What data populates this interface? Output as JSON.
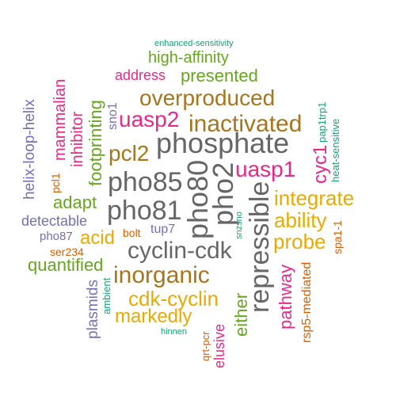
{
  "colors": {
    "teal": "#1b9e77",
    "orange": "#d95f02",
    "purple": "#7570b3",
    "magenta": "#e7298a",
    "green": "#66a61e",
    "gold": "#e6ab02",
    "brown": "#a6761d",
    "gray": "#666666"
  },
  "words": [
    {
      "text": "enhanced-sensitivity",
      "color": "teal"
    },
    {
      "text": "high-affinity",
      "color": "green"
    },
    {
      "text": "address",
      "color": "magenta"
    },
    {
      "text": "presented",
      "color": "green"
    },
    {
      "text": "overproduced",
      "color": "brown"
    },
    {
      "text": "uasp2",
      "color": "magenta"
    },
    {
      "text": "inactivated",
      "color": "brown"
    },
    {
      "text": "phosphate",
      "color": "gray"
    },
    {
      "text": "pcl2",
      "color": "brown"
    },
    {
      "text": "pho85",
      "color": "gray"
    },
    {
      "text": "pho80",
      "color": "gray"
    },
    {
      "text": "pho2",
      "color": "gray"
    },
    {
      "text": "uasp1",
      "color": "magenta"
    },
    {
      "text": "integrate",
      "color": "gold"
    },
    {
      "text": "pho81",
      "color": "gray"
    },
    {
      "text": "adapt",
      "color": "green"
    },
    {
      "text": "ability",
      "color": "gold"
    },
    {
      "text": "detectable",
      "color": "purple"
    },
    {
      "text": "tup7",
      "color": "purple"
    },
    {
      "text": "bolt",
      "color": "orange"
    },
    {
      "text": "pho87",
      "color": "purple"
    },
    {
      "text": "acid",
      "color": "gold"
    },
    {
      "text": "probe",
      "color": "gold"
    },
    {
      "text": "cyclin-cdk",
      "color": "gray"
    },
    {
      "text": "ser234",
      "color": "orange"
    },
    {
      "text": "quantified",
      "color": "green"
    },
    {
      "text": "inorganic",
      "color": "brown"
    },
    {
      "text": "cdk-cyclin",
      "color": "gold"
    },
    {
      "text": "markedly",
      "color": "gold"
    },
    {
      "text": "hinnen",
      "color": "teal"
    },
    {
      "text": "helix-loop-helix",
      "color": "purple"
    },
    {
      "text": "mammalian",
      "color": "magenta"
    },
    {
      "text": "inhibitor",
      "color": "magenta"
    },
    {
      "text": "footprinting",
      "color": "green"
    },
    {
      "text": "sno1",
      "color": "purple"
    },
    {
      "text": "pcl1",
      "color": "orange"
    },
    {
      "text": "pap1trp1",
      "color": "teal"
    },
    {
      "text": "heat-sensitive",
      "color": "teal"
    },
    {
      "text": "cyc1",
      "color": "magenta"
    },
    {
      "text": "repressible",
      "color": "gray"
    },
    {
      "text": "snzsno",
      "color": "teal"
    },
    {
      "text": "spa1-1",
      "color": "orange"
    },
    {
      "text": "pathway",
      "color": "magenta"
    },
    {
      "text": "rsp5-mediated",
      "color": "orange"
    },
    {
      "text": "either",
      "color": "green"
    },
    {
      "text": "elusive",
      "color": "magenta"
    },
    {
      "text": "qrt-pcr",
      "color": "orange"
    },
    {
      "text": "plasmids",
      "color": "purple"
    },
    {
      "text": "ambient",
      "color": "teal"
    }
  ]
}
